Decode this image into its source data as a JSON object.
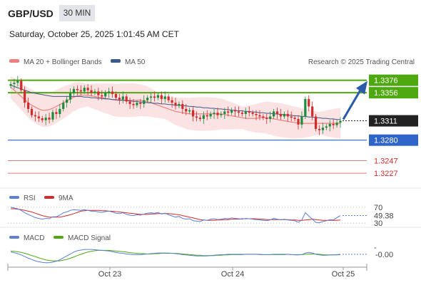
{
  "header": {
    "symbol": "GBP/USD",
    "timeframe": "30 MIN",
    "datetime": "Saturday, October 25, 2025 1:01:45 AM CET"
  },
  "legend": {
    "ma20": "MA 20 + Bollinger Bands",
    "ma50": "MA 50",
    "credit": "Research © 2025 Trading Central",
    "rsi": "RSI",
    "rsi_ma": "9MA",
    "macd": "MACD",
    "macd_signal": "MACD Signal"
  },
  "colors": {
    "up": "#1e8a3c",
    "down": "#d22b2b",
    "ma20": "#f08080",
    "ma50": "#3a5a8c",
    "band": "#fbd9d9",
    "resistance": "#4ea80f",
    "support": "#2f64c8",
    "support_red": "#e04848",
    "arrow": "#2a5ba8",
    "current": "#222222"
  },
  "chart_data": [
    {
      "type": "candlestick",
      "ylim": [
        1.321,
        1.3395
      ],
      "x_ticks": [
        "Oct 23",
        "Oct 24",
        "Oct 25"
      ],
      "levels": [
        {
          "label": "1.3376",
          "value": 1.3376,
          "kind": "resistance"
        },
        {
          "label": "1.3356",
          "value": 1.3356,
          "kind": "resistance"
        },
        {
          "label": "1.3311",
          "value": 1.3311,
          "kind": "current"
        },
        {
          "label": "1.3280",
          "value": 1.328,
          "kind": "support"
        },
        {
          "label": "1.3247",
          "value": 1.3247,
          "kind": "support_red"
        },
        {
          "label": "1.3227",
          "value": 1.3227,
          "kind": "support_red"
        }
      ],
      "close": [
        1.337,
        1.3372,
        1.3375,
        1.336,
        1.334,
        1.333,
        1.332,
        1.3318,
        1.3315,
        1.3312,
        1.3316,
        1.3313,
        1.3325,
        1.3322,
        1.333,
        1.334,
        1.3345,
        1.3355,
        1.3362,
        1.336,
        1.3358,
        1.3364,
        1.336,
        1.3356,
        1.3358,
        1.3352,
        1.335,
        1.3356,
        1.3358,
        1.3354,
        1.3348,
        1.3345,
        1.335,
        1.3342,
        1.3338,
        1.3336,
        1.334,
        1.3338,
        1.3344,
        1.3348,
        1.335,
        1.3348,
        1.3352,
        1.3346,
        1.335,
        1.3344,
        1.334,
        1.3335,
        1.3338,
        1.333,
        1.3326,
        1.3328,
        1.3318,
        1.3316,
        1.3314,
        1.332,
        1.3318,
        1.3322,
        1.3324,
        1.332,
        1.3322,
        1.3326,
        1.3324,
        1.3328,
        1.3326,
        1.3324,
        1.3322,
        1.3326,
        1.3324,
        1.3322,
        1.332,
        1.3318,
        1.3316,
        1.3314,
        1.3318,
        1.3326,
        1.3322,
        1.3318,
        1.3322,
        1.3318,
        1.3316,
        1.3314,
        1.3305,
        1.3318,
        1.3346,
        1.3334,
        1.3318,
        1.3298,
        1.3296,
        1.33,
        1.3302,
        1.3306,
        1.3304,
        1.3308,
        1.3311
      ],
      "ma20": [
        1.3365,
        1.336,
        1.3355,
        1.335,
        1.3345,
        1.334,
        1.3336,
        1.3333,
        1.333,
        1.3328,
        1.3328,
        1.3329,
        1.3331,
        1.3334,
        1.3337,
        1.334,
        1.3343,
        1.3346,
        1.3349,
        1.3351,
        1.3352,
        1.3352,
        1.3352,
        1.3351,
        1.335,
        1.3349,
        1.3348,
        1.3347,
        1.3346,
        1.3345,
        1.3344,
        1.3344,
        1.3344,
        1.3344,
        1.3344,
        1.3344,
        1.3344,
        1.3344,
        1.3343,
        1.3342,
        1.334,
        1.3338,
        1.3336,
        1.3334,
        1.3332,
        1.333,
        1.3328,
        1.3326,
        1.3325,
        1.3324,
        1.3323,
        1.3322,
        1.3322,
        1.3322,
        1.3322,
        1.3322,
        1.3322,
        1.3322,
        1.3322,
        1.3322,
        1.3322,
        1.3321,
        1.332,
        1.3319,
        1.3318,
        1.3317,
        1.3316,
        1.3315,
        1.3315,
        1.3315,
        1.3315,
        1.3316,
        1.3316,
        1.3316,
        1.3315,
        1.3314,
        1.3313,
        1.3312,
        1.3311,
        1.331,
        1.3309,
        1.3308,
        1.3308,
        1.3307,
        1.3307,
        1.3307,
        1.3307,
        1.3307,
        1.3307,
        1.3307,
        1.3307,
        1.3307,
        1.3307,
        1.3307,
        1.3307
      ],
      "ma50": [
        1.3368,
        1.3366,
        1.3364,
        1.3362,
        1.336,
        1.3358,
        1.3356,
        1.3355,
        1.3354,
        1.3353,
        1.3352,
        1.3351,
        1.335,
        1.335,
        1.335,
        1.335,
        1.335,
        1.335,
        1.335,
        1.335,
        1.335,
        1.3349,
        1.3349,
        1.3348,
        1.3348,
        1.3347,
        1.3347,
        1.3346,
        1.3346,
        1.3345,
        1.3345,
        1.3344,
        1.3344,
        1.3343,
        1.3343,
        1.3342,
        1.3342,
        1.3341,
        1.3341,
        1.334,
        1.334,
        1.3339,
        1.3339,
        1.3338,
        1.3338,
        1.3337,
        1.3337,
        1.3336,
        1.3336,
        1.3335,
        1.3335,
        1.3334,
        1.3334,
        1.3333,
        1.3333,
        1.3332,
        1.3332,
        1.3331,
        1.3331,
        1.333,
        1.333,
        1.3329,
        1.3329,
        1.3328,
        1.3328,
        1.3327,
        1.3327,
        1.3326,
        1.3326,
        1.3325,
        1.3325,
        1.3324,
        1.3324,
        1.3323,
        1.3323,
        1.3322,
        1.3322,
        1.3321,
        1.3321,
        1.332,
        1.332,
        1.3319,
        1.3319,
        1.3318,
        1.3318,
        1.3317,
        1.3317,
        1.3316,
        1.3316,
        1.3315,
        1.3315,
        1.3314,
        1.3314,
        1.3313,
        1.3313
      ]
    },
    {
      "type": "line",
      "name": "RSI",
      "ylim": [
        25,
        75
      ],
      "y_ticks": [
        "70",
        "30"
      ],
      "last_value": "49.38",
      "values": [
        70,
        68,
        66,
        62,
        56,
        52,
        48,
        44,
        42,
        40,
        42,
        41,
        46,
        46,
        50,
        56,
        58,
        62,
        64,
        63,
        62,
        64,
        62,
        60,
        60,
        58,
        57,
        59,
        60,
        58,
        55,
        54,
        56,
        52,
        50,
        49,
        51,
        50,
        53,
        55,
        56,
        55,
        57,
        53,
        55,
        51,
        48,
        45,
        47,
        42,
        40,
        41,
        36,
        35,
        34,
        38,
        37,
        40,
        41,
        39,
        40,
        42,
        41,
        43,
        42,
        41,
        40,
        42,
        41,
        40,
        39,
        38,
        37,
        36,
        38,
        42,
        40,
        38,
        40,
        38,
        37,
        36,
        32,
        38,
        56,
        48,
        40,
        32,
        31,
        34,
        36,
        39,
        38,
        44,
        49
      ],
      "ma9": [
        66,
        66,
        65,
        64,
        62,
        60,
        58,
        55,
        52,
        49,
        47,
        45,
        45,
        45,
        45,
        47,
        49,
        51,
        54,
        57,
        60,
        61,
        62,
        62,
        62,
        62,
        61,
        61,
        60,
        60,
        59,
        58,
        57,
        56,
        55,
        54,
        53,
        52,
        52,
        52,
        53,
        53,
        54,
        54,
        54,
        54,
        53,
        52,
        51,
        49,
        47,
        45,
        43,
        41,
        39,
        38,
        37,
        37,
        37,
        38,
        38,
        39,
        39,
        40,
        40,
        40,
        41,
        41,
        41,
        41,
        41,
        40,
        40,
        39,
        39,
        39,
        39,
        39,
        39,
        39,
        38,
        38,
        37,
        37,
        38,
        39,
        40,
        39,
        38,
        37,
        37,
        37,
        37,
        37,
        38
      ]
    },
    {
      "type": "line",
      "name": "MACD",
      "ylim": [
        -0.0035,
        0.0035
      ],
      "y_ticks": [
        "-"
      ],
      "last_value": "-0.00",
      "macd": [
        0.0005,
        0.0003,
        0.0,
        -0.0004,
        -0.0009,
        -0.0014,
        -0.0018,
        -0.0022,
        -0.0025,
        -0.0027,
        -0.0028,
        -0.0028,
        -0.0026,
        -0.0023,
        -0.0019,
        -0.0013,
        -0.0007,
        -0.0001,
        0.0005,
        0.0009,
        0.0011,
        0.0013,
        0.0013,
        0.0013,
        0.0012,
        0.0011,
        0.001,
        0.0009,
        0.0008,
        0.0006,
        0.0004,
        0.0002,
        0.0001,
        -0.0001,
        -0.0002,
        -0.0003,
        -0.0003,
        -0.0003,
        -0.0002,
        -0.0001,
        0.0,
        0.0001,
        0.0002,
        0.0002,
        0.0002,
        0.0002,
        0.0001,
        0.0,
        -0.0001,
        -0.0003,
        -0.0004,
        -0.0005,
        -0.0006,
        -0.0007,
        -0.0007,
        -0.0007,
        -0.0007,
        -0.0006,
        -0.0005,
        -0.0004,
        -0.0003,
        -0.0003,
        -0.0002,
        -0.0002,
        -0.0002,
        -0.0002,
        -0.0002,
        -0.0002,
        -0.0002,
        -0.0002,
        -0.0002,
        -0.0003,
        -0.0003,
        -0.0003,
        -0.0003,
        -0.0002,
        -0.0002,
        -0.0002,
        -0.0002,
        -0.0002,
        -0.0003,
        -0.0004,
        -0.0004,
        -0.0003,
        0.0002,
        0.0004,
        0.0002,
        -0.0002,
        -0.0004,
        -0.0005,
        -0.0005,
        -0.0004,
        -0.0004,
        -0.0003,
        -0.0002
      ],
      "signal": [
        0.0008,
        0.0007,
        0.0006,
        0.0004,
        0.0001,
        -0.0002,
        -0.0006,
        -0.0009,
        -0.0013,
        -0.0016,
        -0.0019,
        -0.0021,
        -0.0022,
        -0.0022,
        -0.0022,
        -0.002,
        -0.0018,
        -0.0014,
        -0.001,
        -0.0006,
        -0.0002,
        0.0002,
        0.0005,
        0.0007,
        0.0009,
        0.001,
        0.001,
        0.001,
        0.001,
        0.0009,
        0.0008,
        0.0007,
        0.0006,
        0.0005,
        0.0003,
        0.0002,
        0.0001,
        0.0,
        0.0,
        -0.0001,
        -0.0001,
        0.0,
        0.0,
        0.0001,
        0.0001,
        0.0001,
        0.0001,
        0.0001,
        0.0,
        -0.0001,
        -0.0002,
        -0.0003,
        -0.0004,
        -0.0005,
        -0.0005,
        -0.0006,
        -0.0006,
        -0.0006,
        -0.0006,
        -0.0005,
        -0.0005,
        -0.0004,
        -0.0004,
        -0.0003,
        -0.0003,
        -0.0003,
        -0.0003,
        -0.0002,
        -0.0002,
        -0.0002,
        -0.0002,
        -0.0002,
        -0.0003,
        -0.0003,
        -0.0003,
        -0.0003,
        -0.0003,
        -0.0003,
        -0.0003,
        -0.0002,
        -0.0003,
        -0.0003,
        -0.0003,
        -0.0003,
        -0.0002,
        -0.0001,
        -0.0001,
        -0.0001,
        -0.0002,
        -0.0003,
        -0.0004,
        -0.0004,
        -0.0004,
        -0.0004,
        -0.0003
      ]
    }
  ]
}
